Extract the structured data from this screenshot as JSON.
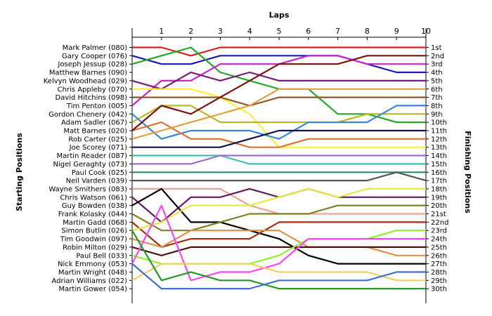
{
  "chart_data": {
    "type": "line",
    "title": "",
    "xlabel": "Laps",
    "ylabel_left": "Starting Positions",
    "ylabel_right": "Finishing Positions",
    "laps": [
      1,
      2,
      3,
      4,
      5,
      6,
      7,
      8,
      9,
      10
    ],
    "driver_labels": [
      "Mark Palmer (080)",
      "Gary Cooper (076)",
      "Joseph Jessup (028)",
      "Matthew Barnes (090)",
      "Kelvyn Woodhead (029)",
      "Chris Appleby (070)",
      "David Hitchins (098)",
      "Tim Penton (005)",
      "Gordon Chenery (042)",
      "Adam Sadler (067)",
      "Matt Barnes (020)",
      "Rob Carter (025)",
      "Joe Scorey (071)",
      "Martin Reader (087)",
      "Nigel Geraghty (073)",
      "Paul Cook (025)",
      "Neil Varden (039)",
      "Wayne Smithers (083)",
      "Chris Watson (061)",
      "Guy Bowden (038)",
      "Frank Kolasky (044)",
      "Martin Gadd (068)",
      "Simon Butlin (026)",
      "Tim Goodwin (097)",
      "Robin Milton (029)",
      "Paul Bell (033)",
      "Nick Emmony (053)",
      "Martin Wright (048)",
      "Adrian Williams (022)",
      "Martin Gower (054)"
    ],
    "finishing_labels": [
      "1st",
      "2nd",
      "3rd",
      "4th",
      "5th",
      "6th",
      "7th",
      "8th",
      "9th",
      "10th",
      "11th",
      "12th",
      "13th",
      "14th",
      "15th",
      "16th",
      "17th",
      "18th",
      "19th",
      "20th",
      "21st",
      "22nd",
      "23rd",
      "24th",
      "25th",
      "26th",
      "27th",
      "28th",
      "29th",
      "30th"
    ],
    "series": [
      {
        "color": "#d82020",
        "positions": [
          1,
          1,
          2,
          1,
          1,
          1,
          1,
          1,
          1,
          1,
          1
        ]
      },
      {
        "color": "#1818b8",
        "positions": [
          2,
          3,
          3,
          2,
          2,
          2,
          2,
          2,
          3,
          4,
          4
        ]
      },
      {
        "color": "#22aa22",
        "positions": [
          3,
          2,
          1,
          4,
          5,
          6,
          6,
          9,
          9,
          10,
          10
        ]
      },
      {
        "color": "#cc22cc",
        "positions": [
          8,
          5,
          5,
          3,
          3,
          3,
          2,
          2,
          3,
          3,
          3
        ]
      },
      {
        "color": "#7a1a7a",
        "positions": [
          5,
          6,
          4,
          5,
          4,
          5,
          5,
          5,
          5,
          5,
          5
        ]
      },
      {
        "color": "#ffee33",
        "positions": [
          6,
          6,
          6,
          7,
          9,
          13,
          13,
          13,
          13,
          13,
          13
        ]
      },
      {
        "color": "#8b5a2b",
        "positions": [
          7,
          7,
          7,
          7,
          8,
          7,
          7,
          7,
          7,
          7,
          7
        ]
      },
      {
        "color": "#b8b820",
        "positions": [
          10,
          8,
          8,
          10,
          10,
          10,
          10,
          10,
          9,
          9,
          9
        ]
      },
      {
        "color": "#3388dd",
        "positions": [
          9,
          12,
          11,
          11,
          11,
          12,
          10,
          10,
          10,
          8,
          8
        ]
      },
      {
        "color": "#e07030",
        "positions": [
          11,
          10,
          12,
          12,
          13,
          13,
          12,
          12,
          12,
          12,
          12
        ]
      },
      {
        "color": "#7a1010",
        "positions": [
          11,
          8,
          9,
          7,
          5,
          3,
          3,
          3,
          2,
          2,
          2
        ]
      },
      {
        "color": "#e0a040",
        "positions": [
          12,
          11,
          10,
          9,
          8,
          6,
          6,
          6,
          6,
          6,
          6
        ]
      },
      {
        "color": "#101050",
        "positions": [
          13,
          13,
          13,
          13,
          12,
          11,
          11,
          11,
          11,
          11,
          11
        ]
      },
      {
        "color": "#40c0b0",
        "positions": [
          14,
          14,
          14,
          14,
          15,
          15,
          15,
          15,
          15,
          15,
          15
        ]
      },
      {
        "color": "#9a70c8",
        "positions": [
          15,
          15,
          15,
          14,
          14,
          14,
          14,
          14,
          14,
          14,
          14
        ]
      },
      {
        "color": "#2a8a6a",
        "positions": [
          16,
          16,
          16,
          16,
          16,
          16,
          16,
          16,
          16,
          16,
          16
        ]
      },
      {
        "color": "#555555",
        "positions": [
          17,
          17,
          17,
          17,
          17,
          17,
          17,
          17,
          17,
          16,
          17
        ]
      },
      {
        "color": "#f0a090",
        "positions": [
          18,
          18,
          18,
          18,
          20,
          21,
          21,
          21,
          21,
          21,
          21
        ]
      },
      {
        "color": "#601860",
        "positions": [
          19,
          22,
          19,
          19,
          18,
          19,
          18,
          19,
          19,
          19,
          19
        ]
      },
      {
        "color": "#000000",
        "positions": [
          20,
          18,
          22,
          22,
          23,
          24,
          26,
          27,
          27,
          27,
          27
        ]
      },
      {
        "color": "#808020",
        "positions": [
          21,
          23,
          23,
          22,
          21,
          21,
          21,
          20,
          20,
          20,
          20
        ]
      },
      {
        "color": "#a03010",
        "positions": [
          22,
          25,
          24,
          24,
          24,
          22,
          22,
          22,
          22,
          22,
          22
        ]
      },
      {
        "color": "#e8e840",
        "positions": [
          23,
          22,
          20,
          20,
          20,
          19,
          18,
          19,
          18,
          18,
          18
        ]
      },
      {
        "color": "#e09040",
        "positions": [
          24,
          25,
          23,
          23,
          23,
          23,
          25,
          25,
          25,
          26,
          26
        ]
      },
      {
        "color": "#501010",
        "positions": [
          25,
          26,
          25,
          25,
          25,
          25,
          25,
          25,
          25,
          25,
          25
        ]
      },
      {
        "color": "#90f030",
        "positions": [
          26,
          27,
          27,
          27,
          27,
          26,
          24,
          24,
          24,
          23,
          23
        ]
      },
      {
        "color": "#ff44ff",
        "positions": [
          27,
          20,
          29,
          28,
          28,
          27,
          24,
          24,
          24,
          24,
          24
        ]
      },
      {
        "color": "#f0d060",
        "positions": [
          29,
          27,
          27,
          27,
          27,
          28,
          28,
          28,
          28,
          29,
          29
        ]
      },
      {
        "color": "#229922",
        "positions": [
          23,
          29,
          28,
          29,
          29,
          30,
          30,
          30,
          30,
          30,
          30
        ]
      },
      {
        "color": "#4070d0",
        "positions": [
          27,
          30,
          30,
          30,
          30,
          29,
          29,
          29,
          29,
          28,
          28
        ]
      }
    ]
  }
}
